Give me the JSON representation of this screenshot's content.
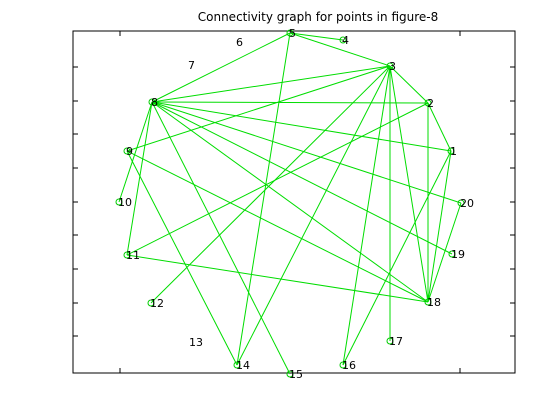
{
  "figure": {
    "title": "Connectivity graph for points in figure-8",
    "edge_color": "#00dd00",
    "node_color": "#00cc00",
    "text_color": "#000000",
    "frame_color": "#000000"
  },
  "graph": {
    "nodes": [
      {
        "id": "1",
        "label": "1",
        "marker": true
      },
      {
        "id": "2",
        "label": "2",
        "marker": true
      },
      {
        "id": "3",
        "label": "3",
        "marker": true
      },
      {
        "id": "4",
        "label": "4",
        "marker": true
      },
      {
        "id": "5",
        "label": "5",
        "marker": true
      },
      {
        "id": "6",
        "label": "6",
        "marker": false
      },
      {
        "id": "7",
        "label": "7",
        "marker": false
      },
      {
        "id": "8",
        "label": "8",
        "marker": true
      },
      {
        "id": "9",
        "label": "9",
        "marker": true
      },
      {
        "id": "10",
        "label": "10",
        "marker": true
      },
      {
        "id": "11",
        "label": "11",
        "marker": true
      },
      {
        "id": "12",
        "label": "12",
        "marker": true
      },
      {
        "id": "13",
        "label": "13",
        "marker": false
      },
      {
        "id": "14",
        "label": "14",
        "marker": true
      },
      {
        "id": "15",
        "label": "15",
        "marker": true
      },
      {
        "id": "16",
        "label": "16",
        "marker": true
      },
      {
        "id": "17",
        "label": "17",
        "marker": true
      },
      {
        "id": "18",
        "label": "18",
        "marker": true
      },
      {
        "id": "19",
        "label": "19",
        "marker": true
      },
      {
        "id": "20",
        "label": "20",
        "marker": true
      }
    ],
    "edges": [
      [
        "8",
        "2"
      ],
      [
        "8",
        "3"
      ],
      [
        "8",
        "1"
      ],
      [
        "8",
        "20"
      ],
      [
        "8",
        "19"
      ],
      [
        "8",
        "18"
      ],
      [
        "8",
        "15"
      ],
      [
        "8",
        "11"
      ],
      [
        "8",
        "10"
      ],
      [
        "8",
        "5"
      ],
      [
        "5",
        "4"
      ],
      [
        "5",
        "3"
      ],
      [
        "5",
        "14"
      ],
      [
        "3",
        "2"
      ],
      [
        "3",
        "9"
      ],
      [
        "3",
        "18"
      ],
      [
        "3",
        "17"
      ],
      [
        "3",
        "16"
      ],
      [
        "3",
        "14"
      ],
      [
        "3",
        "12"
      ],
      [
        "2",
        "1"
      ],
      [
        "2",
        "18"
      ],
      [
        "2",
        "11"
      ],
      [
        "9",
        "18"
      ],
      [
        "9",
        "14"
      ],
      [
        "1",
        "18"
      ],
      [
        "1",
        "16"
      ],
      [
        "20",
        "18"
      ],
      [
        "11",
        "18"
      ]
    ]
  }
}
